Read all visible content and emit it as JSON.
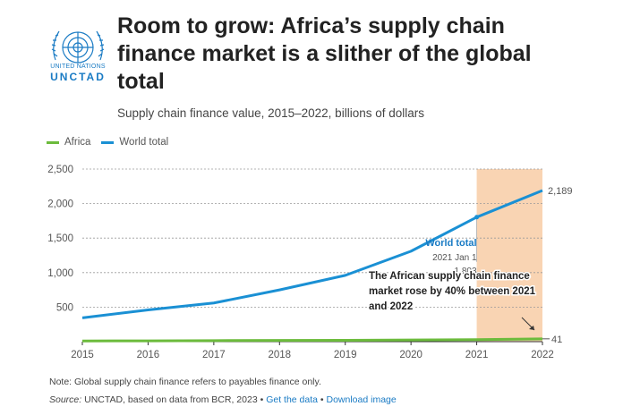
{
  "header": {
    "org_line1": "UNITED NATIONS",
    "org_line2": "UNCTAD",
    "title": "Room to grow: Africa’s supply chain finance market is a slither of the global total",
    "subtitle": "Supply chain finance value, 2015–2022, billions of dollars"
  },
  "colors": {
    "africa": "#6cbb3c",
    "world": "#1a90d4",
    "highlight": "#f9d4b3"
  },
  "chart_data": {
    "type": "line",
    "x": [
      2015,
      2016,
      2017,
      2018,
      2019,
      2020,
      2021,
      2022
    ],
    "series": [
      {
        "name": "Africa",
        "values": [
          10,
          12,
          15,
          18,
          20,
          24,
          29,
          41
        ],
        "end_label": "41"
      },
      {
        "name": "World total",
        "values": [
          345,
          460,
          560,
          750,
          960,
          1310,
          1803,
          2189
        ],
        "end_label": "2,189"
      }
    ],
    "xlabel": "",
    "ylabel": "",
    "ylim": [
      0,
      2500
    ],
    "yticks": [
      500,
      1000,
      1500,
      2000,
      2500
    ],
    "ytick_labels": [
      "500",
      "1,000",
      "1,500",
      "2,000",
      "2,500"
    ],
    "xtick_labels": [
      "2015",
      "2016",
      "2017",
      "2018",
      "2019",
      "2020",
      "2021",
      "2022"
    ],
    "highlight_range": [
      2021,
      2022
    ],
    "tooltip": {
      "series": "World total",
      "date": "2021 Jan 1",
      "value": "1,803"
    },
    "annotation": "The African supply chain finance market rose by 40% between 2021 and 2022"
  },
  "footer": {
    "note": "Note: Global supply chain finance refers to payables finance only.",
    "source_label": "Source:",
    "source_text": " UNCTAD, based on data from BCR, 2023 • ",
    "get_data": "Get the data",
    "sep": " • ",
    "download": "Download image"
  }
}
